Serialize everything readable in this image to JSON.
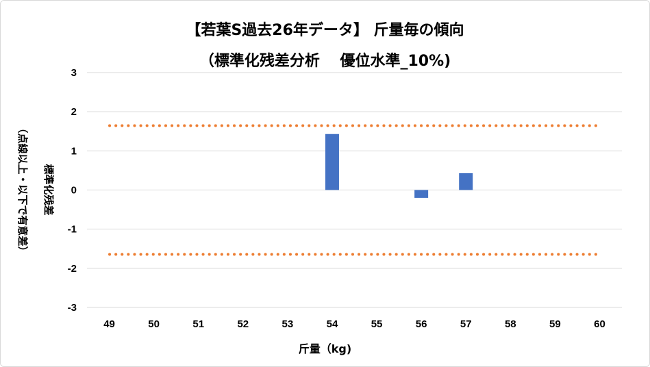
{
  "chart_data": {
    "type": "bar",
    "title_lines": [
      "【若葉S過去26年データ】 斤量毎の傾向",
      "（標準化残差分析　 優位水準_10%)"
    ],
    "xlabel": "斤量（kg)",
    "ylabel_lines": [
      "標準化残差",
      "（点線以上・以下で有意差）"
    ],
    "categories": [
      "49",
      "50",
      "51",
      "52",
      "53",
      "54",
      "55",
      "56",
      "57",
      "58",
      "59",
      "60"
    ],
    "values": [
      null,
      null,
      null,
      null,
      null,
      1.43,
      null,
      -0.2,
      0.43,
      null,
      null,
      null
    ],
    "ylim": [
      -3,
      3
    ],
    "yticks": [
      "3",
      "2",
      "1",
      "0",
      "-1",
      "-2",
      "-3"
    ],
    "threshold": 1.645,
    "grid": true,
    "legend": "none",
    "colors": {
      "bar": "#4472c4",
      "threshold": "#ed7d31",
      "grid": "#d9d9d9"
    }
  }
}
